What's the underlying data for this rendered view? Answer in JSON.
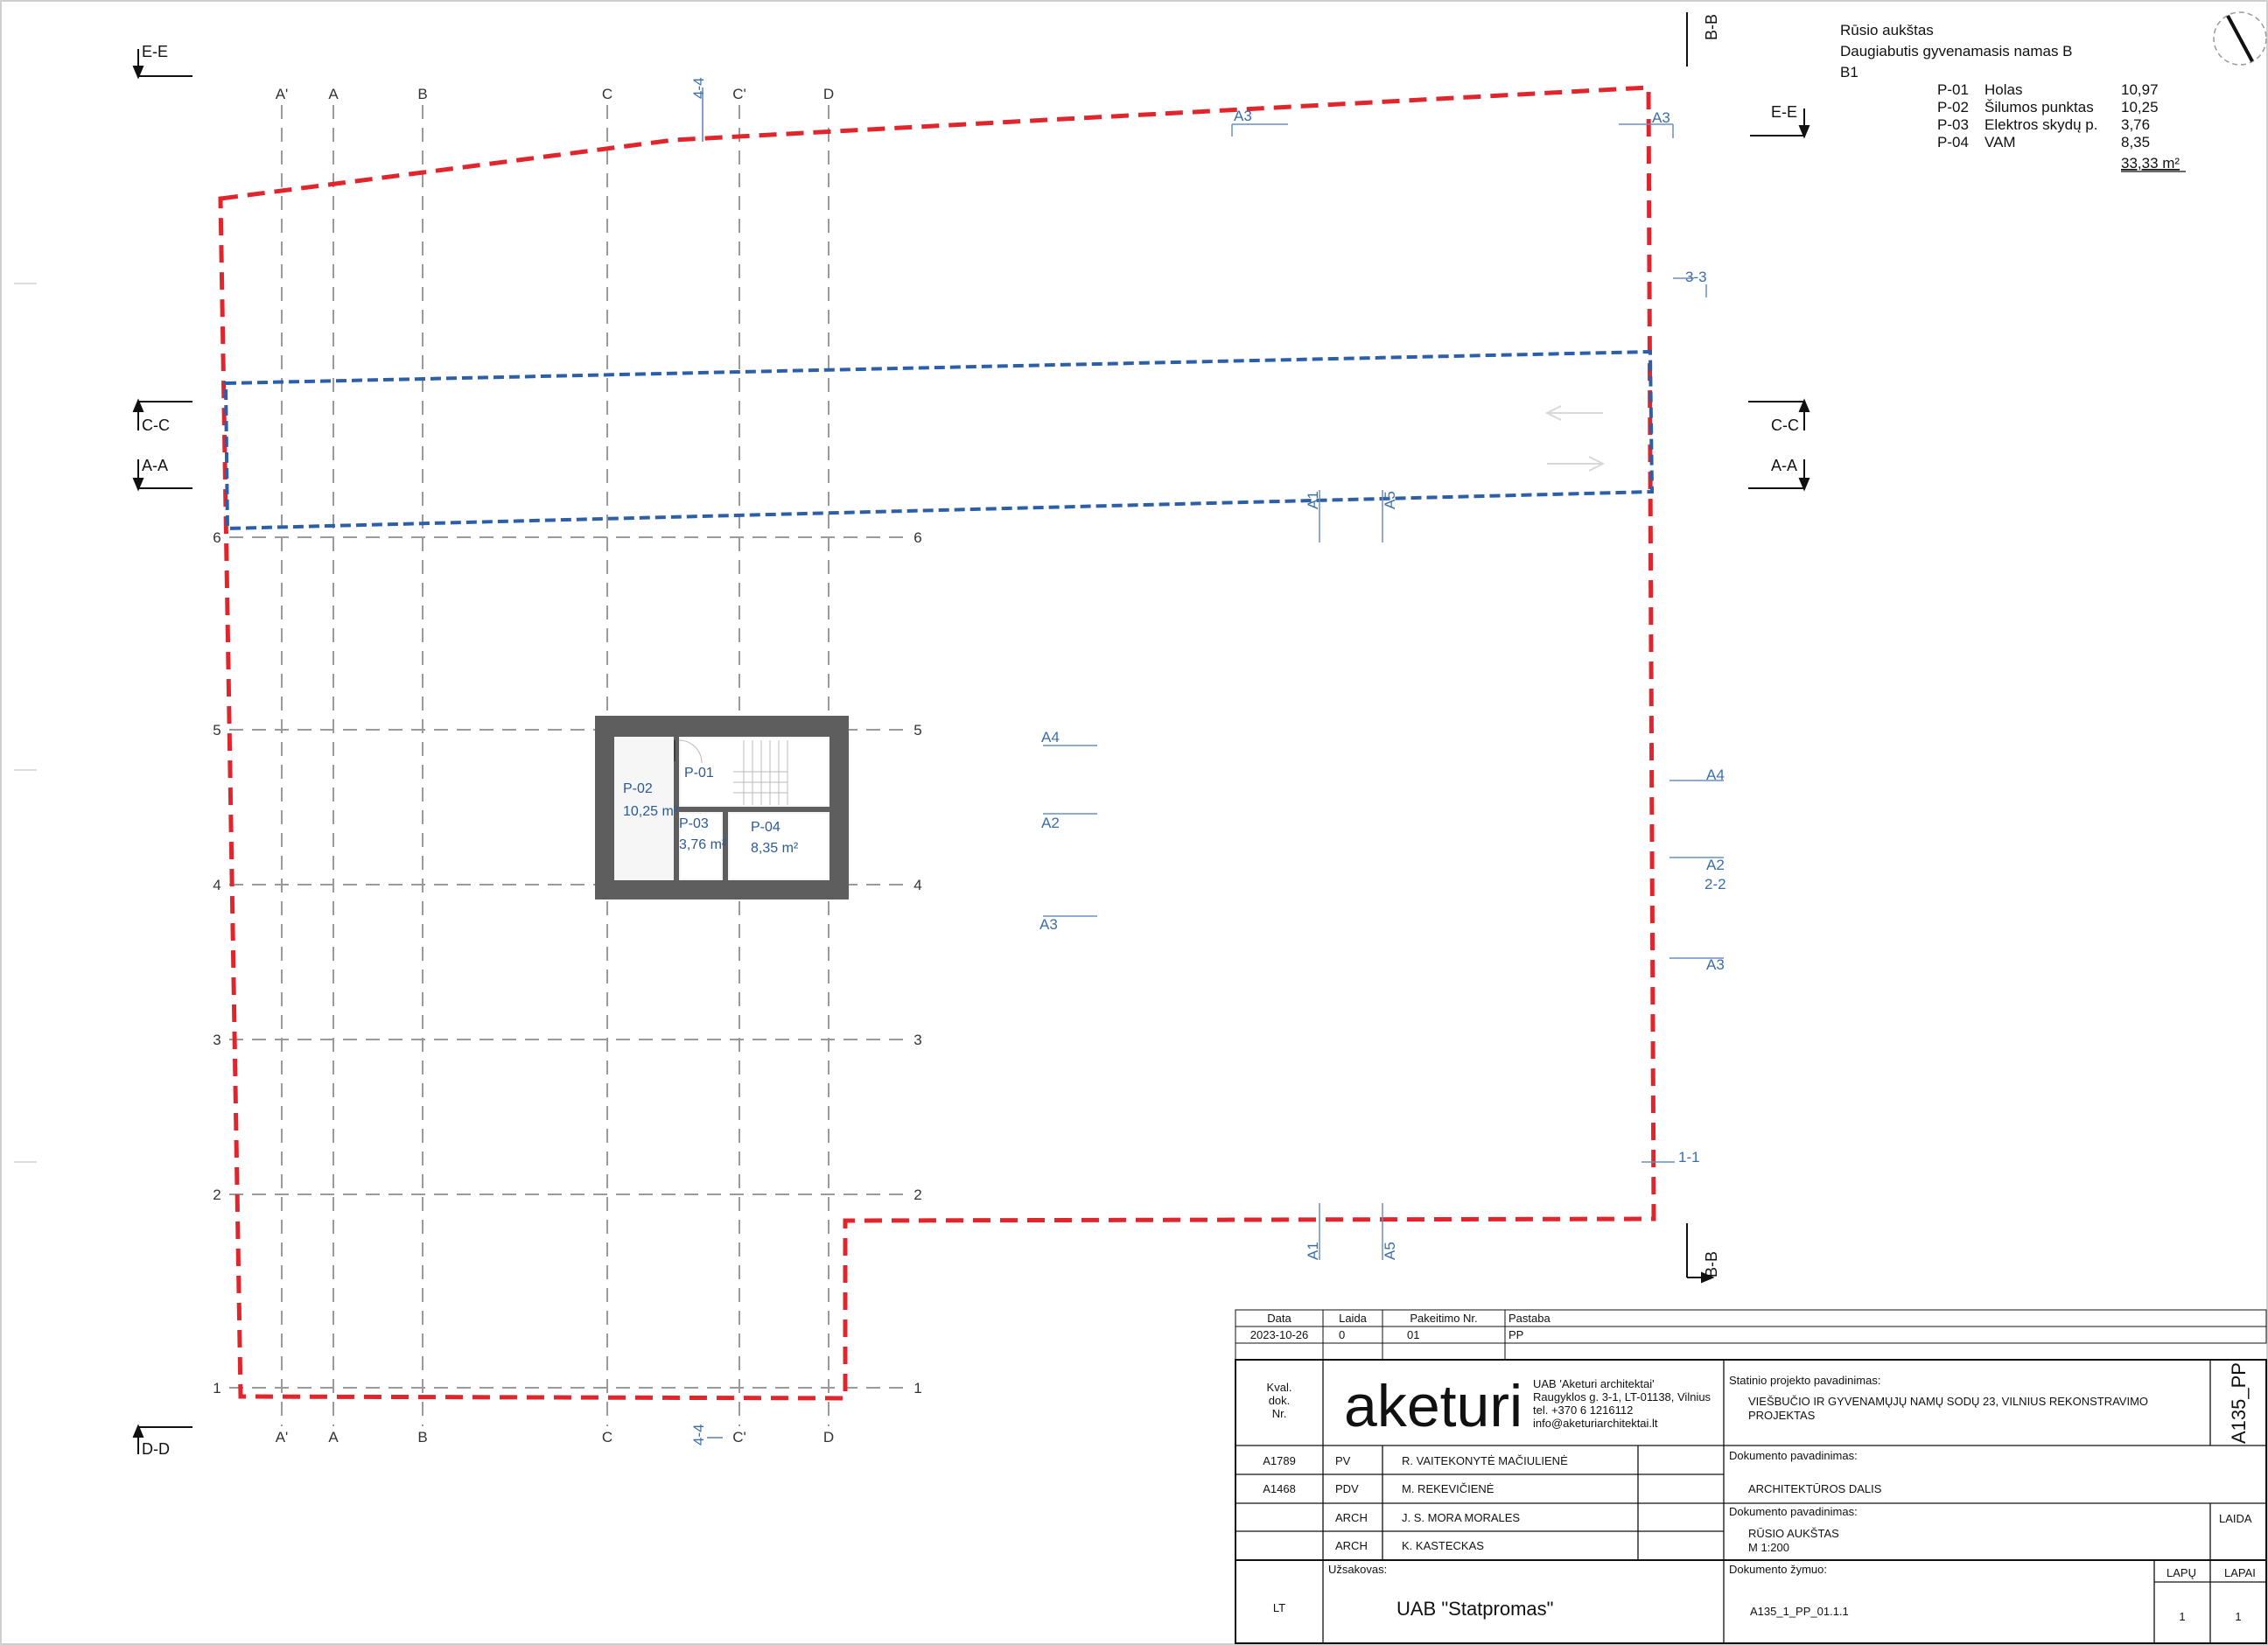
{
  "legend": {
    "title1": "Rūsio aukštas",
    "title2": "Daugiabutis gyvenamasis namas B",
    "title3": "B1",
    "rooms": [
      {
        "code": "P-01",
        "name": "Holas",
        "area": "10,97"
      },
      {
        "code": "P-02",
        "name": "Šilumos punktas",
        "area": "10,25"
      },
      {
        "code": "P-03",
        "name": "Elektros skydų p.",
        "area": "3,76"
      },
      {
        "code": "P-04",
        "name": "VAM",
        "area": "8,35"
      }
    ],
    "total": "33,33 m²"
  },
  "grid": {
    "top_axes": [
      "A'",
      "A",
      "B",
      "C",
      "C'",
      "D"
    ],
    "side_numbers": [
      "6",
      "5",
      "4",
      "3",
      "2",
      "1"
    ],
    "axis_4_4": "4-4"
  },
  "sections": {
    "ee": "E-E",
    "cc": "C-C",
    "aa": "A-A",
    "dd": "D-D",
    "bb": "B-B",
    "s33": "3-3",
    "s22": "2-2",
    "s11": "1-1"
  },
  "elevations": {
    "a1": "A1",
    "a2": "A2",
    "a3": "A3",
    "a4": "A4",
    "a5": "A5"
  },
  "rooms_plan": {
    "p01": "P-01",
    "p02": "P-02",
    "p02_area": "10,25 m²",
    "p03": "P-03",
    "p03_area": "3,76 m²",
    "p04": "P-04",
    "p04_area": "8,35 m²"
  },
  "revision_table": {
    "headers": [
      "Data",
      "Laida",
      "Pakeitimo Nr.",
      "Pastaba"
    ],
    "row": [
      "2023-10-26",
      "0",
      "01",
      "PP"
    ]
  },
  "title_block": {
    "kval_1": "Kval.",
    "kval_2": "dok.",
    "kval_3": "Nr.",
    "logo": "aketuri",
    "company": "UAB 'Aketuri architektai'",
    "address": "Raugyklos g. 3-1, LT-01138, Vilnius",
    "phone": "tel. +370 6 1216112",
    "email": "info@aketuriarchitektai.lt",
    "project_label": "Statinio projekto pavadinimas:",
    "project_name_1": "VIEŠBUČIO IR GYVENAMŲJŲ NAMŲ SODŲ 23, VILNIUS REKONSTRAVIMO",
    "project_name_2": "PROJEKTAS",
    "code_vertical": "A135_PP",
    "doc_label": "Dokumento pavadinimas:",
    "doc_name": "ARCHITEKTŪROS DALIS",
    "doc_label_2": "Dokumento pavadinimas:",
    "doc_name_2": "RŪSIO AUKŠTAS",
    "doc_scale": "M 1:200",
    "laida_label": "LAIDA",
    "staff": [
      {
        "nr": "A1789",
        "role": "PV",
        "name": "R. VAITEKONYTĖ MAČIULIENĖ"
      },
      {
        "nr": "A1468",
        "role": "PDV",
        "name": "M. REKEVIČIENĖ"
      },
      {
        "nr": "",
        "role": "ARCH",
        "name": "J. S. MORA MORALES"
      },
      {
        "nr": "",
        "role": "ARCH",
        "name": "K. KASTECKAS"
      }
    ],
    "client_label": "Užsakovas:",
    "lang": "LT",
    "client": "UAB \"Statpromas\"",
    "doc_code_label": "Dokumento žymuo:",
    "doc_code": "A135_1_PP_01.1.1",
    "lapu_label": "LAPŲ",
    "lapai_label": "LAPAI",
    "lapu": "1",
    "lapai": "1"
  }
}
